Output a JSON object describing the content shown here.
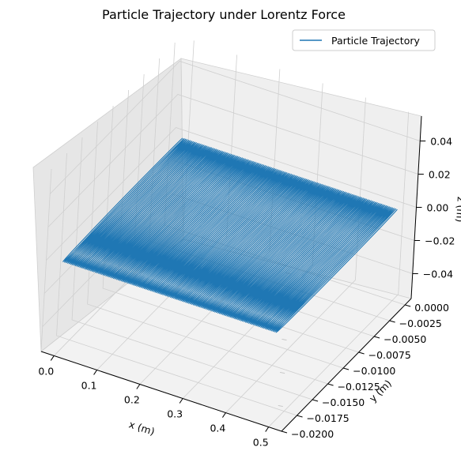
{
  "chart_data": {
    "type": "line",
    "projection": "3d",
    "title": "Particle Trajectory under Lorentz Force",
    "xlabel": "x (m)",
    "ylabel": "y (m)",
    "zlabel": "z (m)",
    "xlim": [
      -0.03,
      0.53
    ],
    "ylim": [
      -0.02,
      0.001
    ],
    "zlim": [
      -0.055,
      0.055
    ],
    "xticks": [
      "0.0",
      "0.1",
      "0.2",
      "0.3",
      "0.4",
      "0.5"
    ],
    "xtick_values": [
      0.0,
      0.1,
      0.2,
      0.3,
      0.4,
      0.5
    ],
    "yticks": [
      "0.0000",
      "−0.0025",
      "−0.0050",
      "−0.0075",
      "−0.0100",
      "−0.0125",
      "−0.0150",
      "−0.0175",
      "−0.0200"
    ],
    "ytick_values": [
      0.0,
      -0.0025,
      -0.005,
      -0.0075,
      -0.01,
      -0.0125,
      -0.015,
      -0.0175,
      -0.02
    ],
    "zticks": [
      "0.04",
      "0.02",
      "0.00",
      "−0.02",
      "−0.04"
    ],
    "ztick_values": [
      0.04,
      0.02,
      0.0,
      -0.02,
      -0.04
    ],
    "grid": true,
    "legend_position": "top-right",
    "series": [
      {
        "name": "Particle Trajectory",
        "color": "#1f77b4",
        "x_range": [
          0.0,
          0.5
        ],
        "y_range": [
          -0.0195,
          0.0
        ],
        "z": 0.0,
        "loops": 140
      }
    ]
  }
}
